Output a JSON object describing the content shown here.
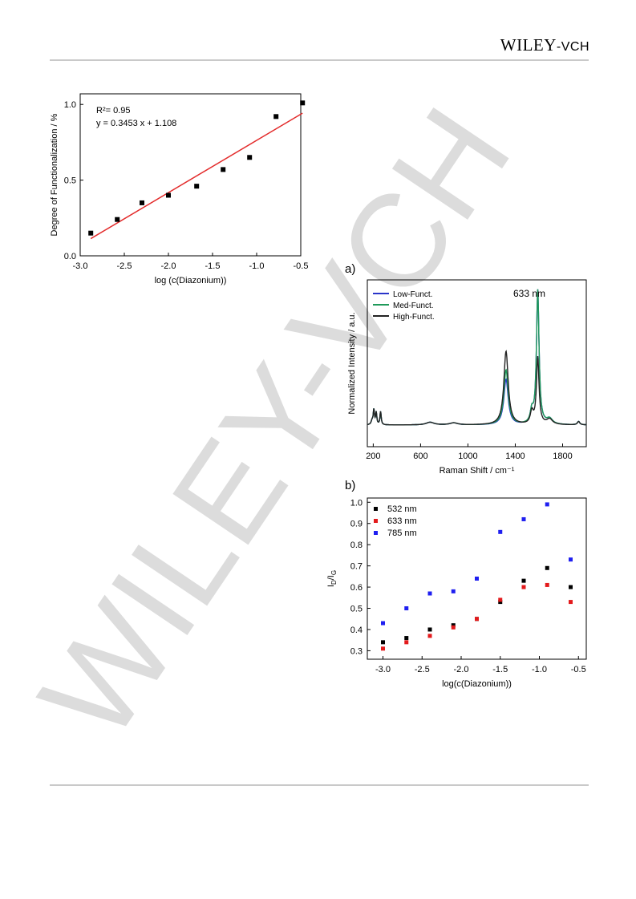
{
  "header": {
    "publisher_main": "WILEY",
    "publisher_sub": "-VCH"
  },
  "watermark": {
    "text": "WILEY-VCH",
    "color": "#d6d6d6"
  },
  "panel_a_label": "a)",
  "panel_b_label": "b)",
  "colors": {
    "fit_line": "#e32b2b",
    "low": "#2a35c9",
    "med": "#1f9a5a",
    "high": "#222222",
    "s532": "#000000",
    "s633": "#e31a1c",
    "s785": "#1f1ff0"
  },
  "chart_data": [
    {
      "id": "functionalization",
      "type": "scatter",
      "xlabel": "log (c(Diazonium))",
      "ylabel": "Degree of Functionalization / %",
      "xlim": [
        -3.0,
        -0.5
      ],
      "ylim": [
        0.0,
        1.0
      ],
      "xticks": [
        "-3.0",
        "-2.5",
        "-2.0",
        "-1.5",
        "-1.0",
        "-0.5"
      ],
      "yticks": [
        "0.0",
        "0.5",
        "1.0"
      ],
      "annotations": {
        "r2": "R²= 0.95",
        "equation": "y = 0.3453 x + 1.108"
      },
      "points": {
        "x": [
          -2.88,
          -2.58,
          -2.3,
          -2.0,
          -1.68,
          -1.38,
          -1.08,
          -0.78,
          -0.48
        ],
        "y": [
          0.15,
          0.24,
          0.35,
          0.4,
          0.46,
          0.57,
          0.65,
          0.92,
          1.01
        ]
      },
      "fit": {
        "slope": 0.3453,
        "intercept": 1.108,
        "x_range": [
          -2.88,
          -0.48
        ]
      }
    },
    {
      "id": "raman",
      "type": "line",
      "xlabel": "Raman Shift / cm⁻¹",
      "ylabel": "Normalized Intensity / a.u.",
      "xlim": [
        150,
        2000
      ],
      "xticks": [
        "200",
        "600",
        "1000",
        "1400",
        "1800"
      ],
      "annotation": "633 nm",
      "series": [
        {
          "name": "Low-Funct.",
          "d_peak": 0.34,
          "g_peak": 1.0
        },
        {
          "name": "Med-Funct.",
          "d_peak": 0.41,
          "g_peak": 1.0
        },
        {
          "name": "High-Funct.",
          "d_peak": 0.55,
          "g_peak": 0.5
        }
      ]
    },
    {
      "id": "id_ig",
      "type": "scatter",
      "xlabel": "log(c(Diazonium))",
      "ylabel": "ID/IG",
      "xlim": [
        -3.2,
        -0.4
      ],
      "ylim": [
        0.26,
        1.02
      ],
      "xticks": [
        "-3.0",
        "-2.5",
        "-2.0",
        "-1.5",
        "-1.0",
        "-0.5"
      ],
      "yticks": [
        "0.3",
        "0.4",
        "0.5",
        "0.6",
        "0.7",
        "0.8",
        "0.9",
        "1.0"
      ],
      "x": [
        -3.0,
        -2.7,
        -2.4,
        -2.1,
        -1.8,
        -1.5,
        -1.2,
        -0.9,
        -0.6
      ],
      "series": [
        {
          "name": "532 nm",
          "values": [
            0.34,
            0.36,
            0.4,
            0.42,
            0.45,
            0.53,
            0.63,
            0.69,
            0.6
          ]
        },
        {
          "name": "633 nm",
          "values": [
            0.31,
            0.34,
            0.37,
            0.41,
            0.45,
            0.54,
            0.6,
            0.61,
            0.53
          ]
        },
        {
          "name": "785 nm",
          "values": [
            0.43,
            0.5,
            0.57,
            0.58,
            0.64,
            0.86,
            0.92,
            0.99,
            0.73
          ]
        }
      ]
    }
  ]
}
